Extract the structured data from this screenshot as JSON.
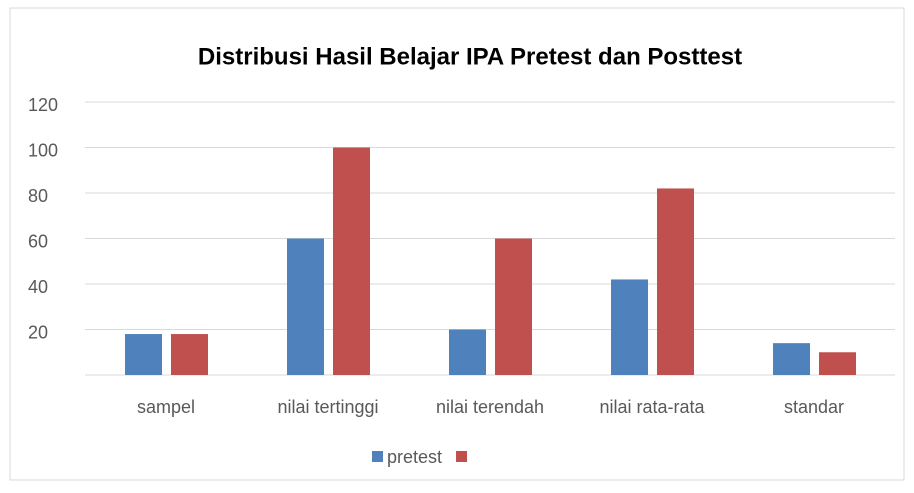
{
  "chart_data": {
    "type": "bar",
    "title": "Distribusi Hasil Belajar IPA Pretest dan Posttest",
    "categories": [
      "sampel",
      "nilai tertinggi",
      "nilai terendah",
      "nilai rata-rata",
      "standar"
    ],
    "series": [
      {
        "name": "pretest",
        "color": "#4f81bd",
        "values": [
          18,
          60,
          20,
          42,
          14
        ]
      },
      {
        "name": null,
        "color": "#c0504d",
        "values": [
          18,
          100,
          60,
          82,
          10
        ]
      }
    ],
    "ylim": [
      0,
      120
    ],
    "yticks": [
      20,
      40,
      60,
      80,
      100,
      120
    ],
    "grid": true
  }
}
